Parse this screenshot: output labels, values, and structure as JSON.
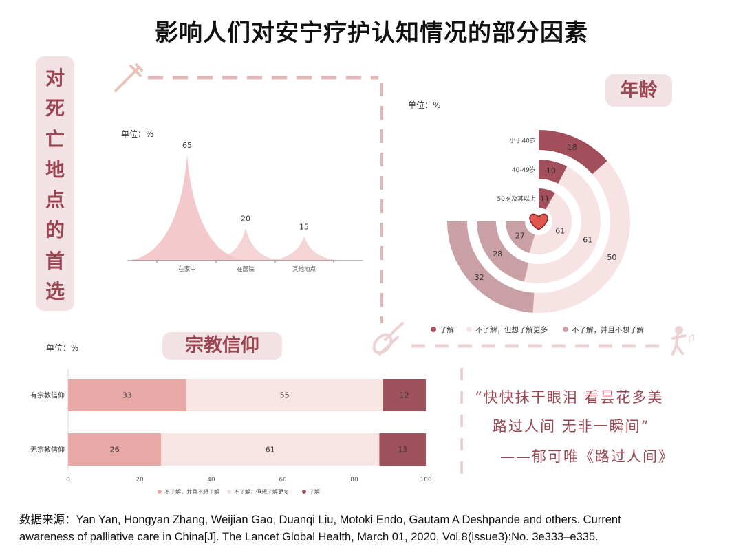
{
  "title": "影响人们对安宁疗护认知情况的部分因素",
  "side_label": [
    "对",
    "死",
    "亡",
    "地",
    "点",
    "的",
    "首",
    "选"
  ],
  "colors": {
    "accent": "#9b4652",
    "tag_bg": "#f2e2e4",
    "dash": "#e2b7b7"
  },
  "icons": [
    "syringe-icon",
    "violin-icon",
    "dancer-icon",
    "heart-icon"
  ],
  "chart_data": [
    {
      "type": "area",
      "unit_label": "单位：%",
      "categories": [
        "在家中",
        "在医院",
        "其他地点"
      ],
      "values": [
        65,
        20,
        15
      ],
      "color": "#f2c6c8"
    },
    {
      "type": "radial-bar",
      "heading": "年龄",
      "unit_label": "单位：%",
      "categories": [
        "小于40岁",
        "40-49岁",
        "50岁及其以上"
      ],
      "series": [
        {
          "name": "了解",
          "values": [
            18,
            10,
            11
          ],
          "color": "#a24f5b"
        },
        {
          "name": "不了解，但想了解更多",
          "values": [
            50,
            61,
            61
          ],
          "color": "#f8e3e4"
        },
        {
          "name": "不了解，并且不想了解",
          "values": [
            32,
            28,
            27
          ],
          "color": "#c9a0a6"
        }
      ]
    },
    {
      "type": "bar",
      "orientation": "horizontal-stacked",
      "heading": "宗教信仰",
      "unit_label": "单位：%",
      "categories": [
        "有宗教信仰",
        "无宗教信仰"
      ],
      "xlim": [
        0,
        100
      ],
      "xticks": [
        "0",
        "20",
        "40",
        "60",
        "80",
        "100"
      ],
      "legend_position": "bottom",
      "series": [
        {
          "name": "不了解，并且不想了解",
          "values": [
            33,
            26
          ],
          "color": "#e8a9a6"
        },
        {
          "name": "不了解，但想了解更多",
          "values": [
            55,
            61
          ],
          "color": "#f9e4e4"
        },
        {
          "name": "了解",
          "values": [
            12,
            13
          ],
          "color": "#9e525b"
        }
      ]
    }
  ],
  "quote": {
    "line1": "“快快抹干眼泪 看昙花多美",
    "line2": "路过人间 无非一瞬间”",
    "line3": "——郁可唯《路过人间》"
  },
  "source": {
    "line1": "数据来源：Yan Yan, Hongyan Zhang, Weijian Gao, Duanqi Liu, Motoki Endo, Gautam A Deshpande and others. Current",
    "line2": "awareness of palliative care in China[J]. The Lancet Global Health, March 01, 2020, Vol.8(issue3):No. 3e333–e335."
  }
}
